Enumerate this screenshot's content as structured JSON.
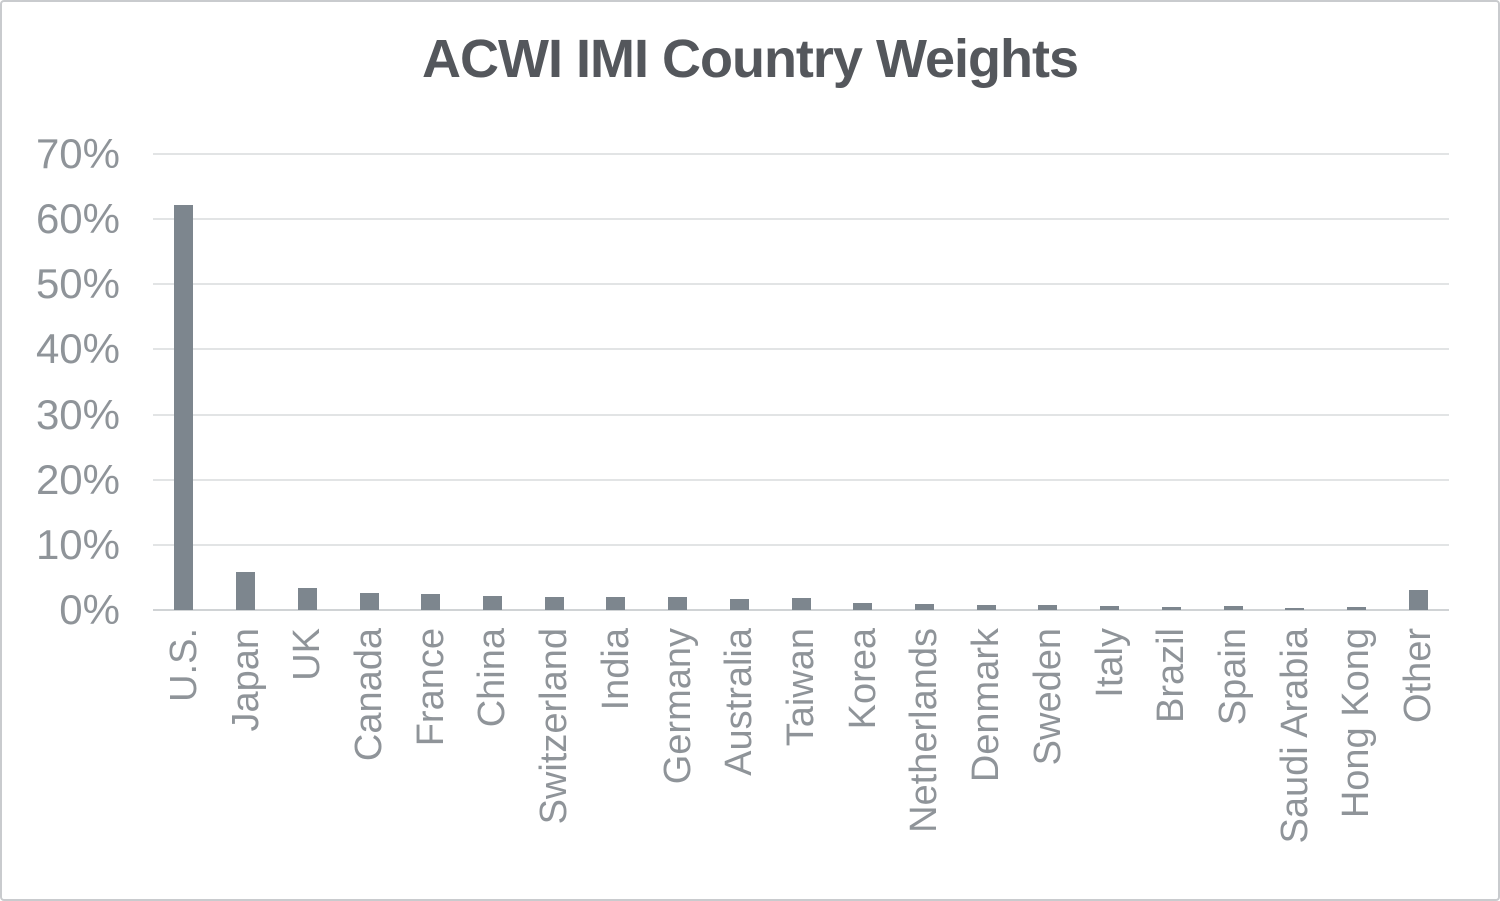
{
  "chart_data": {
    "type": "bar",
    "title": "ACWI IMI Country Weights",
    "categories": [
      "U.S.",
      "Japan",
      "UK",
      "Canada",
      "France",
      "China",
      "Switzerland",
      "India",
      "Germany",
      "Australia",
      "Taiwan",
      "Korea",
      "Netherlands",
      "Denmark",
      "Sweden",
      "Italy",
      "Brazil",
      "Spain",
      "Saudi Arabia",
      "Hong Kong",
      "Other"
    ],
    "values": [
      62.2,
      5.9,
      3.4,
      2.6,
      2.4,
      2.2,
      2.0,
      2.0,
      2.0,
      1.7,
      1.9,
      1.1,
      0.9,
      0.8,
      0.8,
      0.6,
      0.4,
      0.6,
      0.3,
      0.4,
      3.1
    ],
    "value_unit": "%",
    "xlabel": "",
    "ylabel": "",
    "ylim": [
      0,
      70
    ],
    "ytick_step": 10,
    "ytick_labels": [
      "0%",
      "10%",
      "20%",
      "30%",
      "40%",
      "50%",
      "60%",
      "70%"
    ],
    "grid": "horizontal",
    "legend": "none",
    "x_label_rotation": "bottom-to-top",
    "colors": {
      "bar": "#7d868e",
      "title": "#54575c",
      "axis_labels": "#8f9499",
      "gridline": "#e2e4e5",
      "baseline": "#d0d3d5",
      "background": "#ffffff",
      "border": "#c9cbce"
    }
  }
}
